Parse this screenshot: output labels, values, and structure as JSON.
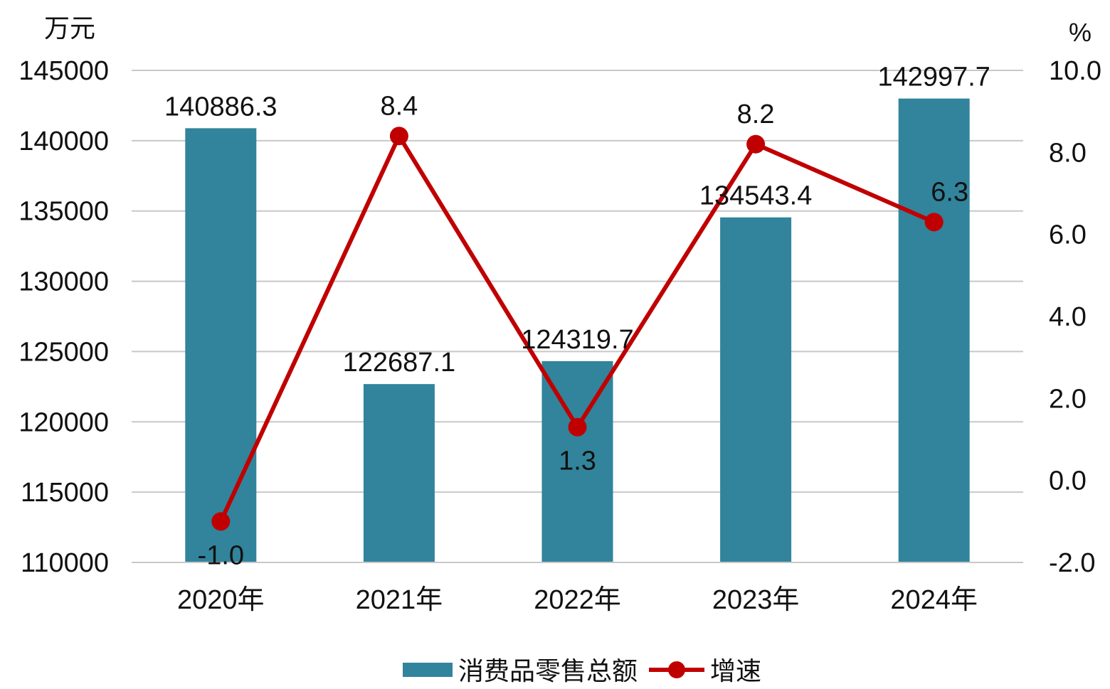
{
  "chart_data": {
    "type": "bar",
    "categories": [
      "2020年",
      "2021年",
      "2022年",
      "2023年",
      "2024年"
    ],
    "series": [
      {
        "name": "消费品零售总额",
        "kind": "bar",
        "axis": "left",
        "color": "#31849b",
        "values": [
          140886.3,
          122687.1,
          124319.7,
          134543.4,
          142997.7
        ],
        "labels": [
          "140886.3",
          "122687.1",
          "124319.7",
          "134543.4",
          "142997.7"
        ]
      },
      {
        "name": "增速",
        "kind": "line",
        "axis": "right",
        "color": "#c00000",
        "values": [
          -1.0,
          8.4,
          1.3,
          8.2,
          6.3
        ],
        "labels": [
          "-1.0",
          "8.4",
          "1.3",
          "8.2",
          "6.3"
        ]
      }
    ],
    "left_axis": {
      "unit": "万元",
      "ylim": [
        110000,
        145000
      ],
      "ticks": [
        "110000",
        "115000",
        "120000",
        "125000",
        "130000",
        "135000",
        "140000",
        "145000"
      ]
    },
    "right_axis": {
      "unit": "%",
      "ylim": [
        -2.0,
        10.0
      ],
      "ticks": [
        "-2.0",
        "0.0",
        "2.0",
        "4.0",
        "6.0",
        "8.0",
        "10.0"
      ]
    },
    "grid": true,
    "legend_position": "bottom"
  }
}
